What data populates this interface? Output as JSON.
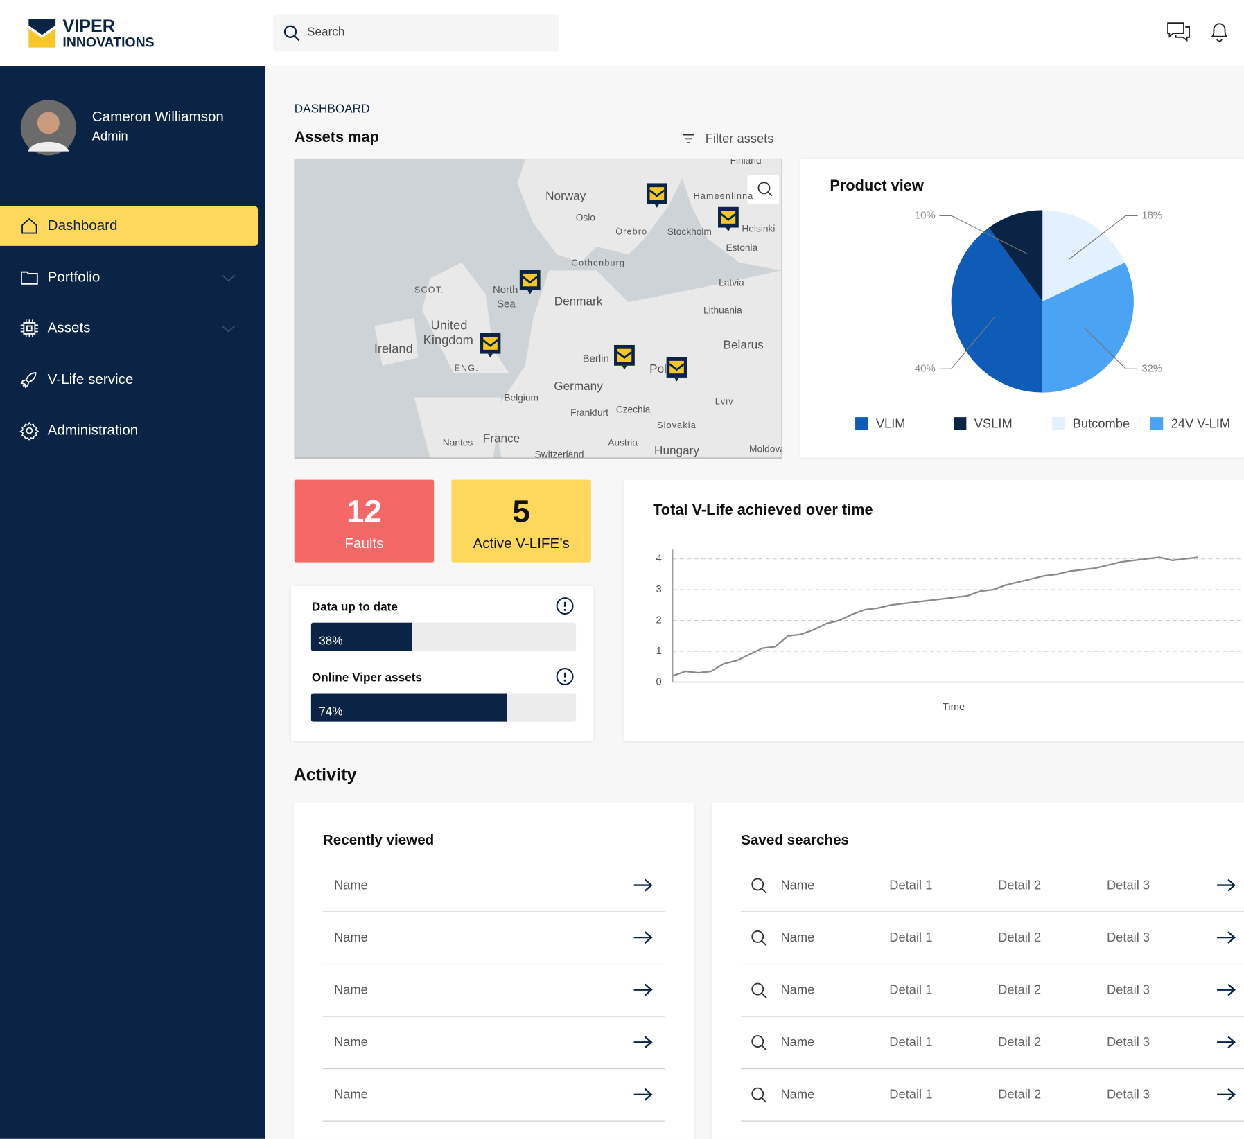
{
  "header": {
    "logo": [
      "VIPER",
      "INNOVATIONS"
    ],
    "search_placeholder": "Search"
  },
  "user": {
    "name": "Cameron Williamson",
    "role": "Admin"
  },
  "nav": [
    {
      "label": "Dashboard"
    },
    {
      "label": "Portfolio"
    },
    {
      "label": "Assets"
    },
    {
      "label": "V-Life service"
    },
    {
      "label": "Administration"
    }
  ],
  "breadcrumb": "DASHBOARD",
  "assets_map": {
    "title": "Assets map",
    "filter": "Filter assets",
    "labels": [
      "Finland",
      "Norway",
      "Oslo",
      "Örebro",
      "Stockholm",
      "Hämeenlinna",
      "Helsinki",
      "Estonia",
      "Gothenburg",
      "Latvia",
      "SCOT.",
      "North",
      "Sea",
      "Denmark",
      "Lithuania",
      "United",
      "Kingdom",
      "Ireland",
      "Belarus",
      "ENG.",
      "Berlin",
      "Poland",
      "Germany",
      "Belgium",
      "Lviv",
      "Frankfurt",
      "Czechia",
      "Slovakia",
      "Nantes",
      "France",
      "Austria",
      "Switzerland",
      "Hungary",
      "Moldova"
    ]
  },
  "chart_data": [
    {
      "type": "pie",
      "title": "Product view",
      "categories": [
        "Butcombe",
        "24V V-LIM",
        "VLIM",
        "VSLIM"
      ],
      "values": [
        18,
        32,
        40,
        10
      ],
      "value_labels": [
        "18%",
        "32%",
        "40%",
        "10%"
      ],
      "colors": [
        "#e3f0fd",
        "#4aa3f5",
        "#0f5cb8",
        "#0b2345"
      ],
      "legend_order": [
        2,
        3,
        0,
        1
      ]
    },
    {
      "type": "line",
      "title": "Total V-Life achieved over time",
      "xlabel": "Time",
      "ylim": [
        0,
        4.3
      ],
      "yticks": [
        0,
        1,
        2,
        3,
        4
      ],
      "grid": true,
      "color": "#8a8a8a",
      "values": [
        0.2,
        0.35,
        0.3,
        0.35,
        0.6,
        0.7,
        0.9,
        1.1,
        1.15,
        1.5,
        1.55,
        1.7,
        1.9,
        2.0,
        2.2,
        2.35,
        2.4,
        2.5,
        2.55,
        2.6,
        2.65,
        2.7,
        2.75,
        2.8,
        2.95,
        3.0,
        3.15,
        3.25,
        3.35,
        3.45,
        3.5,
        3.6,
        3.65,
        3.7,
        3.8,
        3.9,
        3.95,
        4.0,
        4.05,
        3.95,
        4.0,
        4.05
      ]
    }
  ],
  "stats": [
    {
      "value": 12,
      "label": "Faults"
    },
    {
      "value": 5,
      "label": "Active V-LIFE’s"
    }
  ],
  "progress": [
    {
      "label": "Data up to date",
      "value": 38,
      "value_label": "38%"
    },
    {
      "label": "Online Viper assets",
      "value": 74,
      "value_label": "74%"
    }
  ],
  "activity": {
    "title": "Activity",
    "recently_viewed": {
      "title": "Recently viewed",
      "rows": [
        "Name",
        "Name",
        "Name",
        "Name",
        "Name"
      ]
    },
    "saved_searches": {
      "title": "Saved searches",
      "rows": [
        [
          "Name",
          "Detail 1",
          "Detail 2",
          "Detail 3"
        ],
        [
          "Name",
          "Detail 1",
          "Detail 2",
          "Detail 3"
        ],
        [
          "Name",
          "Detail 1",
          "Detail 2",
          "Detail 3"
        ],
        [
          "Name",
          "Detail 1",
          "Detail 2",
          "Detail 3"
        ],
        [
          "Name",
          "Detail 1",
          "Detail 2",
          "Detail 3"
        ]
      ]
    }
  }
}
